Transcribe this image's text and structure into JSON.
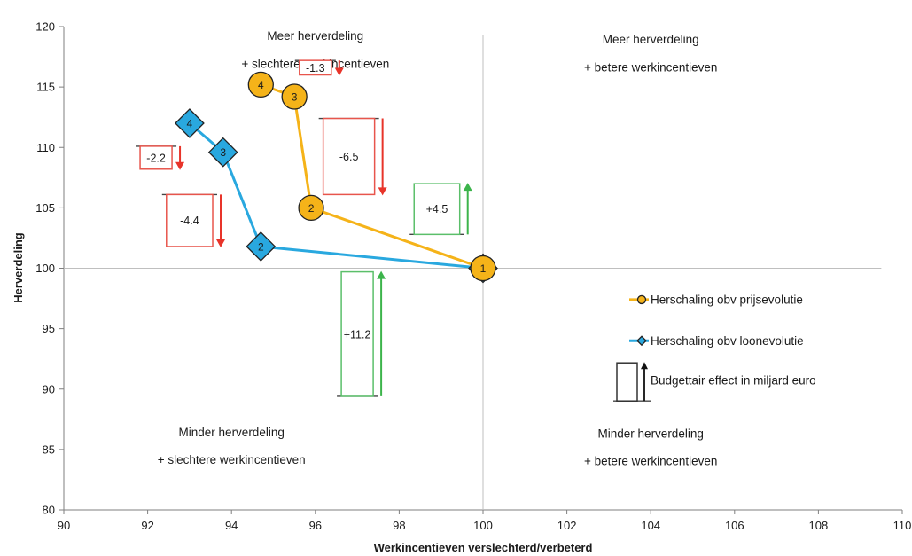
{
  "chart_data": {
    "type": "scatter",
    "xlabel": "Werkincentieven verslechterd/verbeterd",
    "ylabel": "Herverdeling",
    "xlim": [
      90,
      110
    ],
    "ylim": [
      80,
      120
    ],
    "x_ticks": [
      "90",
      "92",
      "94",
      "96",
      "98",
      "100",
      "102",
      "104",
      "106",
      "108",
      "110"
    ],
    "y_ticks": [
      "80",
      "85",
      "90",
      "95",
      "100",
      "105",
      "110",
      "115",
      "120"
    ],
    "reference_lines": {
      "x": 100,
      "y": 100
    },
    "grid": false,
    "quadrants": [
      {
        "id": "top-left",
        "line1": "Meer herverdeling",
        "line2": "+ slechtere werkincentieven"
      },
      {
        "id": "top-right",
        "line1": "Meer herverdeling",
        "line2": "+ betere werkincentieven"
      },
      {
        "id": "bottom-left",
        "line1": "Minder herverdeling",
        "line2": "+ slechtere werkincentieven"
      },
      {
        "id": "bottom-right",
        "line1": "Minder herverdeling",
        "line2": "+ betere werkincentieven"
      }
    ],
    "series": [
      {
        "name": "Herschaling obv prijsevolutie",
        "color": "#f5b319",
        "marker": "circle",
        "points": [
          {
            "label": "1",
            "x": 100.0,
            "y": 100.0
          },
          {
            "label": "2",
            "x": 95.9,
            "y": 105.0
          },
          {
            "label": "3",
            "x": 95.5,
            "y": 114.2
          },
          {
            "label": "4",
            "x": 94.7,
            "y": 115.2
          }
        ]
      },
      {
        "name": "Herschaling obv loonevolutie",
        "color": "#29a8df",
        "marker": "diamond",
        "points": [
          {
            "label": "1",
            "x": 100.0,
            "y": 100.0
          },
          {
            "label": "2",
            "x": 94.7,
            "y": 101.8
          },
          {
            "label": "3",
            "x": 93.8,
            "y": 109.6
          },
          {
            "label": "4",
            "x": 93.0,
            "y": 112.0
          }
        ]
      }
    ],
    "budget_effects": [
      {
        "label": "+11.2",
        "value": 11.2,
        "sign": "positive",
        "x_center": 97.0,
        "y_top": 99.7,
        "y_bottom": 89.4
      },
      {
        "label": "+4.5",
        "value": 4.5,
        "sign": "positive",
        "x_center": 98.9,
        "y_top": 107.0,
        "y_bottom": 102.8
      },
      {
        "label": "-6.5",
        "value": -6.5,
        "sign": "negative",
        "x_center": 96.8,
        "y_top": 112.4,
        "y_bottom": 106.1
      },
      {
        "label": "-4.4",
        "value": -4.4,
        "sign": "negative",
        "x_center": 93.0,
        "y_top": 106.1,
        "y_bottom": 101.8
      },
      {
        "label": "-2.2",
        "value": -2.2,
        "sign": "negative",
        "x_center": 92.2,
        "y_top": 110.1,
        "y_bottom": 108.2
      },
      {
        "label": "-1.3",
        "value": -1.3,
        "sign": "negative",
        "x_center": 96.0,
        "y_top": 117.2,
        "y_bottom": 116.0
      }
    ],
    "legend": {
      "placement": "right",
      "items": [
        {
          "label": "Herschaling obv prijsevolutie",
          "kind": "circle"
        },
        {
          "label": "Herschaling obv loonevolutie",
          "kind": "diamond"
        },
        {
          "label": "Budgettair effect in miljard euro",
          "kind": "box"
        }
      ]
    },
    "colors": {
      "positive": "#3cb44b",
      "negative": "#e8342a",
      "positive_box": "#5bbf6a",
      "negative_box": "#e8554c",
      "reference": "#bfbfbf",
      "axis": "#7f7f7f"
    }
  }
}
